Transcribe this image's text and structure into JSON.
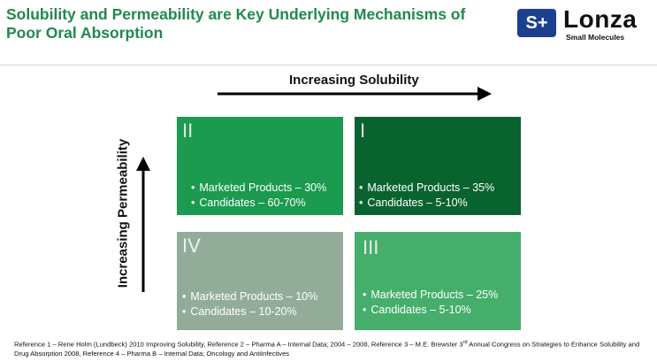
{
  "header": {
    "title": "Solubility and Permeability are Key Underlying Mechanisms of Poor Oral Absorption",
    "logo_mark": "S+",
    "logo_word": "Lonza",
    "logo_sub": "Small Molecules"
  },
  "diagram": {
    "x_axis_label": "Increasing Solubility",
    "y_axis_label": "Increasing Permeability",
    "quadrants": [
      {
        "id": "II",
        "items": [
          "Marketed Products – 30%",
          "Candidates – 60-70%"
        ],
        "color": "#1b9a50"
      },
      {
        "id": "I",
        "items": [
          "Marketed Products – 35%",
          "Candidates – 5-10%"
        ],
        "color": "#09632f"
      },
      {
        "id": "IV",
        "items": [
          "Marketed Products – 10%",
          "Candidates – 10-20%"
        ],
        "color": "#93ac99"
      },
      {
        "id": "III",
        "items": [
          "Marketed Products – 25%",
          "Candidates – 5-10%"
        ],
        "color": "#46ae6b"
      }
    ]
  },
  "footer": {
    "reference_a": "Reference 1 – Rene Holm (Lundbeck) 2010 Improving Solubility, Reference 2 – Pharma A – Internal Data;  2004 – 2008, Reference 3 – M.E. Brewster  3",
    "reference_sup": "rd",
    "reference_b": " Annual Congress on Strategies to Enhance Solubility and Drug Absorption 2008, Reference 4 – Pharma B – Internal Data;  Oncology and AntiInfectives"
  },
  "colors": {
    "title": "#1f8a4c",
    "logo_blue": "#1d3f8f"
  }
}
